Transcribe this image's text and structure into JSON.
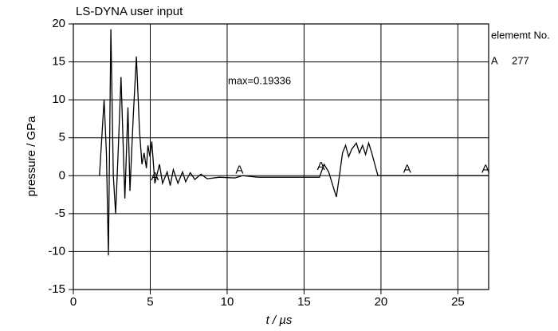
{
  "chart_data": {
    "type": "line",
    "title": "LS-DYNA user input",
    "x_label": "t / µs",
    "y_label": "pressure / GPa",
    "annotation": "max=0.19336",
    "legend_title": "elememt No.",
    "series": [
      {
        "name": "A",
        "label": "277",
        "color": "#000000",
        "x": [
          1.7,
          2.0,
          2.15,
          2.28,
          2.44,
          2.6,
          2.75,
          2.95,
          3.1,
          3.35,
          3.55,
          3.68,
          3.9,
          4.1,
          4.3,
          4.46,
          4.6,
          4.75,
          4.85,
          4.98,
          5.1,
          5.3,
          5.6,
          5.8,
          6.1,
          6.3,
          6.5,
          6.8,
          7.1,
          7.3,
          7.6,
          7.9,
          8.3,
          8.7,
          9.5,
          10.5,
          11.0,
          12.0,
          15.0,
          16.0,
          16.3,
          16.6,
          16.9,
          17.1,
          17.3,
          17.5,
          17.7,
          17.9,
          18.1,
          18.4,
          18.6,
          18.8,
          19.0,
          19.2,
          19.4,
          19.6,
          19.8,
          27.0
        ],
        "values": [
          0,
          10,
          3,
          -10.5,
          19.3,
          0,
          -5,
          5,
          13,
          -3,
          9,
          -2,
          8,
          15.7,
          6,
          1.5,
          3,
          1,
          4,
          2.5,
          4.5,
          -1,
          1.5,
          -1,
          0.5,
          -1.3,
          0.8,
          -1,
          0.5,
          -0.8,
          0.4,
          -0.5,
          0.2,
          -0.4,
          -0.2,
          -0.3,
          0,
          -0.2,
          -0.2,
          -0.2,
          1.5,
          0.5,
          -1.5,
          -2.8,
          0,
          3,
          4,
          2.5,
          3.5,
          4.3,
          3,
          4,
          2.8,
          4.3,
          3,
          1.5,
          0,
          0
        ],
        "marker_x": [
          5.3,
          10.8,
          16.1,
          21.7,
          26.8
        ]
      }
    ],
    "xlim": [
      0,
      27
    ],
    "ylim": [
      -15,
      20
    ],
    "xticks": [
      0,
      5,
      10,
      15,
      20,
      25
    ],
    "yticks": [
      -15,
      -10,
      -5,
      0,
      5,
      10,
      15,
      20
    ],
    "grid": true
  }
}
